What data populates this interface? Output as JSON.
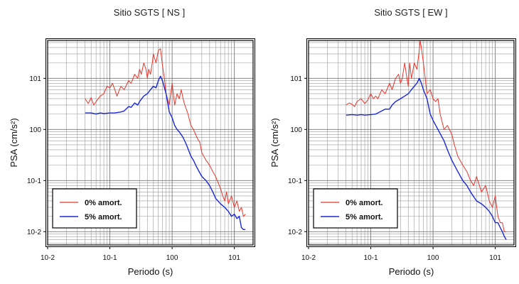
{
  "chart_data": [
    {
      "type": "line",
      "title": "Sitio SGTS [ NS ]",
      "xlabel": "Periodo (s)",
      "ylabel": "PSA (cm/s²)",
      "xscale": "log",
      "yscale": "log",
      "xlim": [
        0.01,
        20
      ],
      "ylim": [
        0.0055,
        55
      ],
      "grid": true,
      "legend_position": "bottom-left",
      "xtick_labels": [
        "10-2",
        "10-1",
        "100",
        "101"
      ],
      "ytick_labels": [
        "10-2",
        "10-1",
        "100",
        "101"
      ],
      "series": [
        {
          "name": "0% amort.",
          "color": "#e8352b",
          "x": [
            0.04,
            0.045,
            0.05,
            0.055,
            0.06,
            0.07,
            0.08,
            0.09,
            0.1,
            0.11,
            0.12,
            0.13,
            0.15,
            0.17,
            0.2,
            0.22,
            0.25,
            0.28,
            0.3,
            0.32,
            0.35,
            0.38,
            0.4,
            0.42,
            0.45,
            0.48,
            0.5,
            0.55,
            0.6,
            0.65,
            0.7,
            0.75,
            0.8,
            0.9,
            1.0,
            1.1,
            1.2,
            1.3,
            1.4,
            1.5,
            1.6,
            1.8,
            2.0,
            2.2,
            2.5,
            2.8,
            3.0,
            3.5,
            4.0,
            4.5,
            5.0,
            5.5,
            6.0,
            6.5,
            7.0,
            7.5,
            8.0,
            9.0,
            10.0,
            11.0,
            12.0,
            13.0,
            14.0,
            15.0
          ],
          "y": [
            4.0,
            3.2,
            4.2,
            3.0,
            3.5,
            4.5,
            5.0,
            7.0,
            6.5,
            8.0,
            6.0,
            4.5,
            7.0,
            6.0,
            9.0,
            8.0,
            12.0,
            10.0,
            15.0,
            12.0,
            20.0,
            15.0,
            10.0,
            15.0,
            12.0,
            20.0,
            30.0,
            20.0,
            35.0,
            38.0,
            18.0,
            10.0,
            5.0,
            3.0,
            8.0,
            3.0,
            5.0,
            4.0,
            6.0,
            4.0,
            3.0,
            2.0,
            1.2,
            1.0,
            0.7,
            0.55,
            0.35,
            0.25,
            0.2,
            0.15,
            0.12,
            0.09,
            0.07,
            0.05,
            0.04,
            0.06,
            0.035,
            0.05,
            0.03,
            0.04,
            0.025,
            0.03,
            0.02,
            0.022
          ]
        },
        {
          "name": "5% amort.",
          "color": "#1a28d8",
          "x": [
            0.04,
            0.05,
            0.06,
            0.07,
            0.08,
            0.1,
            0.12,
            0.15,
            0.17,
            0.2,
            0.22,
            0.25,
            0.28,
            0.3,
            0.35,
            0.4,
            0.45,
            0.5,
            0.55,
            0.6,
            0.65,
            0.7,
            0.8,
            0.9,
            1.0,
            1.1,
            1.2,
            1.3,
            1.5,
            1.7,
            2.0,
            2.2,
            2.5,
            3.0,
            3.5,
            4.0,
            4.5,
            5.0,
            6.0,
            7.0,
            8.0,
            9.0,
            10.0,
            11.0,
            12.0,
            13.0,
            14.0,
            15.0
          ],
          "y": [
            2.1,
            2.1,
            2.0,
            2.1,
            2.05,
            2.1,
            2.1,
            2.2,
            2.3,
            2.8,
            2.7,
            3.3,
            3.0,
            3.5,
            4.5,
            5.0,
            6.0,
            7.0,
            6.5,
            9.0,
            11.0,
            9.0,
            5.0,
            2.2,
            1.7,
            1.2,
            1.0,
            0.9,
            0.7,
            0.5,
            0.3,
            0.25,
            0.18,
            0.12,
            0.1,
            0.08,
            0.06,
            0.045,
            0.035,
            0.03,
            0.025,
            0.02,
            0.022,
            0.018,
            0.02,
            0.012,
            0.011,
            0.011
          ]
        }
      ]
    },
    {
      "type": "line",
      "title": "Sitio SGTS [ EW ]",
      "xlabel": "Periodo (s)",
      "ylabel": "PSA (cm/s²)",
      "xscale": "log",
      "yscale": "log",
      "xlim": [
        0.01,
        20
      ],
      "ylim": [
        0.0055,
        55
      ],
      "grid": true,
      "legend_position": "bottom-left",
      "xtick_labels": [
        "10-2",
        "10-1",
        "100",
        "101"
      ],
      "ytick_labels": [
        "10-2",
        "10-1",
        "100",
        "101"
      ],
      "series": [
        {
          "name": "0% amort.",
          "color": "#e8352b",
          "x": [
            0.04,
            0.045,
            0.05,
            0.055,
            0.06,
            0.07,
            0.08,
            0.09,
            0.1,
            0.11,
            0.12,
            0.13,
            0.15,
            0.17,
            0.2,
            0.22,
            0.25,
            0.28,
            0.3,
            0.32,
            0.35,
            0.38,
            0.4,
            0.42,
            0.45,
            0.5,
            0.55,
            0.6,
            0.62,
            0.65,
            0.7,
            0.8,
            0.9,
            1.0,
            1.1,
            1.2,
            1.3,
            1.5,
            1.7,
            2.0,
            2.2,
            2.5,
            3.0,
            3.5,
            4.0,
            4.5,
            5.0,
            6.0,
            7.0,
            8.0,
            9.0,
            10.0,
            11.0,
            12.0,
            13.0,
            14.0,
            15.0
          ],
          "y": [
            3.0,
            3.3,
            3.1,
            2.8,
            3.5,
            4.0,
            3.2,
            3.8,
            5.0,
            4.0,
            4.5,
            4.0,
            6.0,
            5.0,
            8.0,
            6.0,
            10.0,
            12.0,
            8.0,
            10.0,
            20.0,
            10.0,
            7.0,
            20.0,
            10.0,
            20.0,
            15.0,
            35.0,
            55.0,
            40.0,
            20.0,
            5.0,
            6.0,
            4.0,
            3.5,
            4.0,
            2.0,
            1.0,
            1.2,
            0.8,
            0.5,
            0.3,
            0.2,
            0.15,
            0.1,
            0.08,
            0.12,
            0.06,
            0.08,
            0.04,
            0.03,
            0.05,
            0.02,
            0.015,
            0.015,
            0.01,
            0.01
          ]
        },
        {
          "name": "5% amort.",
          "color": "#1a28d8",
          "x": [
            0.04,
            0.05,
            0.06,
            0.07,
            0.08,
            0.1,
            0.12,
            0.15,
            0.17,
            0.2,
            0.22,
            0.25,
            0.3,
            0.35,
            0.4,
            0.45,
            0.5,
            0.55,
            0.6,
            0.65,
            0.7,
            0.8,
            0.9,
            1.0,
            1.2,
            1.5,
            1.7,
            2.0,
            2.5,
            3.0,
            3.5,
            4.0,
            5.0,
            6.0,
            7.0,
            8.0,
            9.0,
            10.0,
            11.0,
            12.0,
            13.0,
            14.0,
            15.0
          ],
          "y": [
            1.9,
            1.95,
            1.9,
            1.95,
            1.9,
            1.95,
            2.0,
            2.3,
            2.5,
            2.5,
            3.0,
            3.5,
            4.0,
            4.5,
            5.0,
            6.0,
            7.0,
            8.0,
            10.0,
            8.0,
            6.0,
            4.0,
            2.0,
            1.5,
            1.0,
            0.6,
            0.4,
            0.25,
            0.15,
            0.1,
            0.08,
            0.06,
            0.04,
            0.035,
            0.03,
            0.025,
            0.02,
            0.015,
            0.015,
            0.012,
            0.01,
            0.008,
            0.007
          ]
        }
      ]
    }
  ]
}
